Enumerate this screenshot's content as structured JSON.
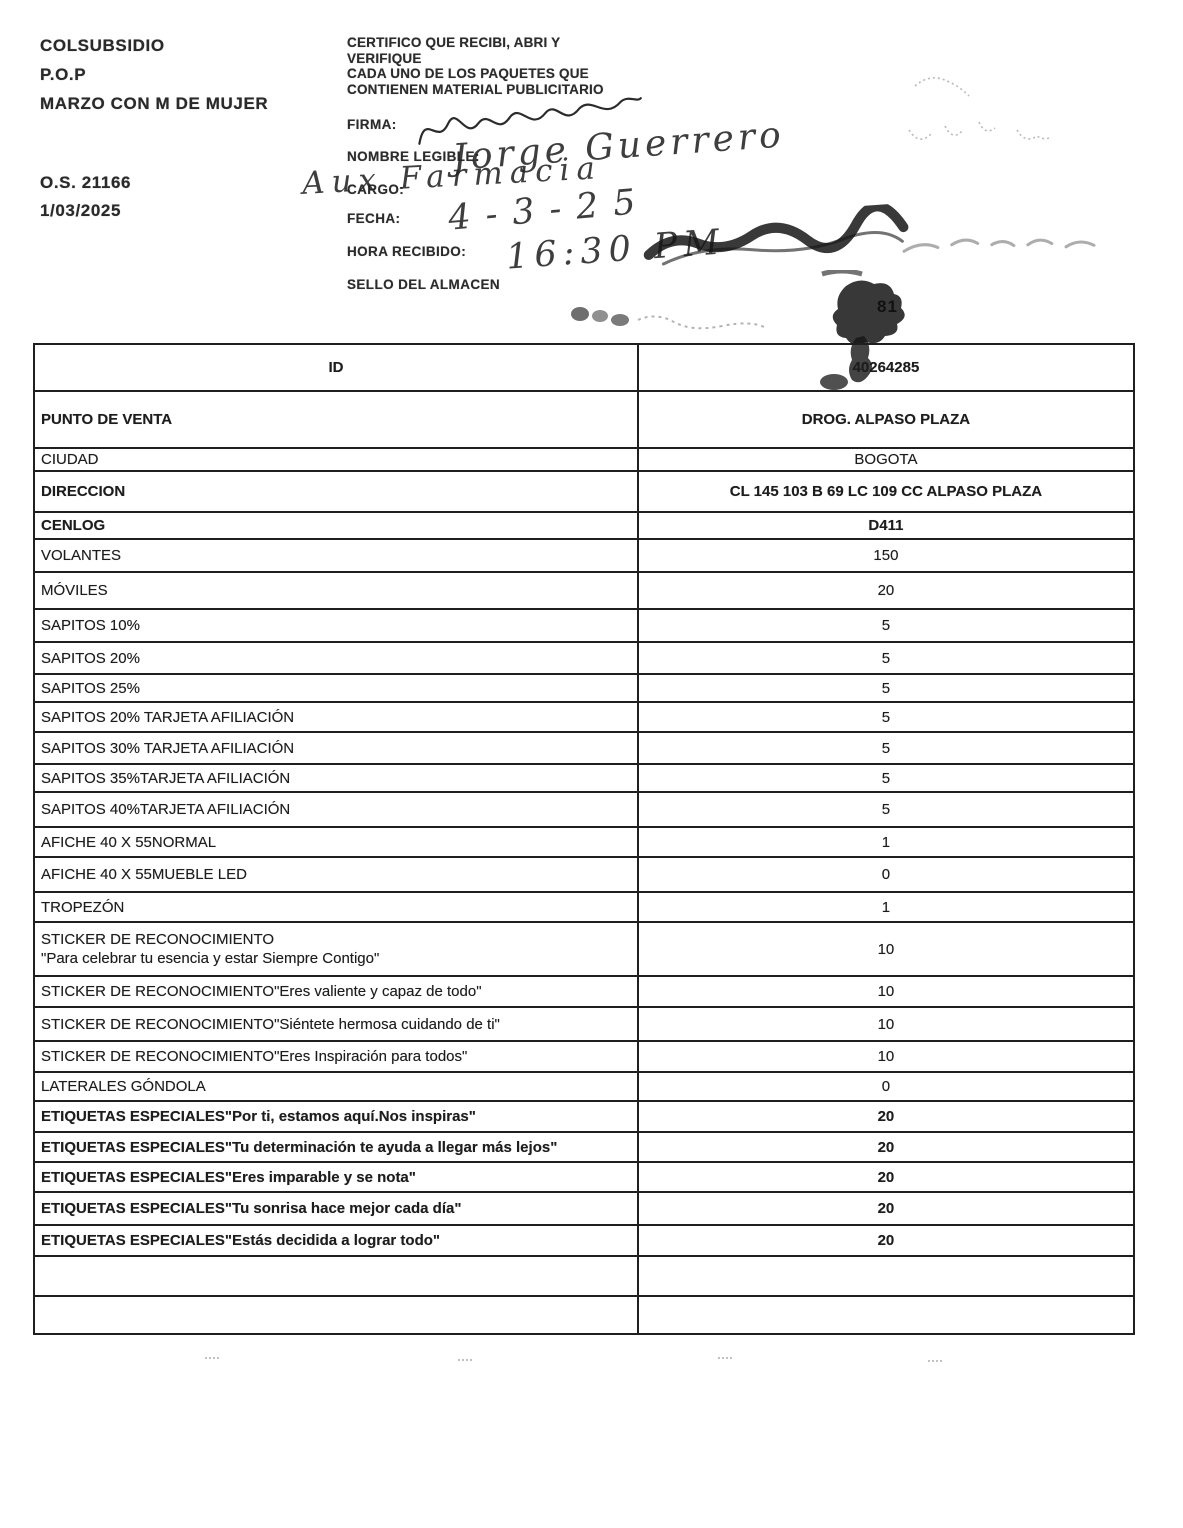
{
  "header": {
    "program": {
      "line1": "COLSUBSIDIO",
      "line2": "P.O.P",
      "line3": "MARZO CON M DE MUJER"
    },
    "order_number": "O.S. 21166",
    "date": "1/03/2025",
    "certification": {
      "line1": "CERTIFICO QUE RECIBI, ABRI Y",
      "line2": "VERIFIQUE",
      "line3": "CADA  UNO DE LOS PAQUETES QUE",
      "line4": "CONTIENEN MATERIAL PUBLICITARIO"
    },
    "fields": {
      "firma": "FIRMA:",
      "nombre": "NOMBRE LEGIBLE:",
      "cargo": "CARGO:",
      "fecha": "FECHA:",
      "hora": "HORA RECIBIDO:",
      "sello": "SELLO DEL ALMACEN"
    }
  },
  "handwriting": {
    "nombre": "Jorge Guerrero",
    "cargo": "Aux Farmacia",
    "fecha": "4-3-25",
    "hora": "16:30 PM"
  },
  "stamp": {
    "number": "81"
  },
  "table": {
    "rows": [
      {
        "label": "ID",
        "value": "40264285",
        "bold": true,
        "center": true
      },
      {
        "label": "PUNTO DE VENTA",
        "value": "DROG. ALPASO PLAZA",
        "bold": true
      },
      {
        "label": "CIUDAD",
        "value": "BOGOTA"
      },
      {
        "label": "DIRECCION",
        "value": "CL 145 103 B 69 LC 109 CC ALPASO PLAZA",
        "bold": true
      },
      {
        "label": "CENLOG",
        "value": "D411",
        "bold": true
      },
      {
        "label": "VOLANTES",
        "value": "150"
      },
      {
        "label": "MÓVILES",
        "value": "20"
      },
      {
        "label": "SAPITOS 10%",
        "value": "5"
      },
      {
        "label": "SAPITOS 20%",
        "value": "5"
      },
      {
        "label": "SAPITOS 25%",
        "value": "5"
      },
      {
        "label": "SAPITOS 20% TARJETA AFILIACIÓN",
        "value": "5"
      },
      {
        "label": "SAPITOS 30% TARJETA AFILIACIÓN",
        "value": "5"
      },
      {
        "label": "SAPITOS 35%TARJETA AFILIACIÓN",
        "value": "5"
      },
      {
        "label": "SAPITOS 40%TARJETA AFILIACIÓN",
        "value": "5"
      },
      {
        "label": "AFICHE 40 X 55NORMAL",
        "value": "1"
      },
      {
        "label": "AFICHE 40 X 55MUEBLE LED",
        "value": "0"
      },
      {
        "label": "TROPEZÓN",
        "value": "1"
      },
      {
        "label": "STICKER DE RECONOCIMIENTO\n\"Para celebrar tu esencia y estar Siempre Contigo\"",
        "value": "10"
      },
      {
        "label": "STICKER DE RECONOCIMIENTO\"Eres valiente y capaz de todo\"",
        "value": "10"
      },
      {
        "label": "STICKER DE RECONOCIMIENTO\"Siéntete hermosa cuidando de ti\"",
        "value": "10"
      },
      {
        "label": "STICKER DE RECONOCIMIENTO\"Eres Inspiración para todos\"",
        "value": "10"
      },
      {
        "label": "LATERALES GÓNDOLA",
        "value": "0"
      },
      {
        "label": "ETIQUETAS ESPECIALES\"Por ti, estamos aquí.Nos inspiras\"",
        "value": "20",
        "bold": true
      },
      {
        "label": "ETIQUETAS ESPECIALES\"Tu determinación te ayuda a llegar más lejos\"",
        "value": "20",
        "bold": true
      },
      {
        "label": "ETIQUETAS ESPECIALES\"Eres imparable y se nota\"",
        "value": "20",
        "bold": true
      },
      {
        "label": "ETIQUETAS ESPECIALES\"Tu sonrisa hace mejor cada día\"",
        "value": "20",
        "bold": true
      },
      {
        "label": "ETIQUETAS ESPECIALES\"Estás decidida a lograr todo\"",
        "value": "20",
        "bold": true
      },
      {
        "label": "",
        "value": ""
      },
      {
        "label": "",
        "value": ""
      }
    ]
  }
}
